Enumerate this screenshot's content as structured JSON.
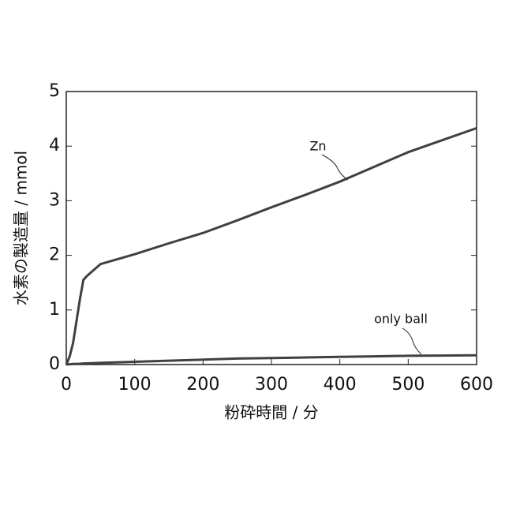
{
  "chart_data": {
    "type": "line",
    "x_label": "粉砕時間 / 分",
    "y_label": "水素の製造量 / mmol",
    "x": [
      0,
      5,
      10,
      15,
      20,
      25,
      30,
      50,
      100,
      150,
      200,
      250,
      300,
      350,
      400,
      450,
      500,
      550,
      600
    ],
    "series": [
      {
        "name": "Zn",
        "color": "#404040",
        "values": [
          0,
          0.15,
          0.4,
          0.8,
          1.2,
          1.55,
          1.62,
          1.84,
          2.02,
          2.22,
          2.41,
          2.64,
          2.88,
          3.11,
          3.35,
          3.62,
          3.89,
          4.11,
          4.33
        ]
      },
      {
        "name": "only ball",
        "color": "#404040",
        "values": [
          0,
          0.005,
          0.01,
          0.012,
          0.015,
          0.02,
          0.022,
          0.03,
          0.05,
          0.07,
          0.09,
          0.11,
          0.12,
          0.13,
          0.14,
          0.15,
          0.16,
          0.165,
          0.17
        ]
      }
    ],
    "xlim": [
      0,
      600
    ],
    "xticks": [
      0,
      100,
      200,
      300,
      400,
      500,
      600
    ],
    "ylim": [
      0,
      5
    ],
    "yticks": [
      0,
      1,
      2,
      3,
      4,
      5
    ],
    "grid": false,
    "legend": false
  }
}
